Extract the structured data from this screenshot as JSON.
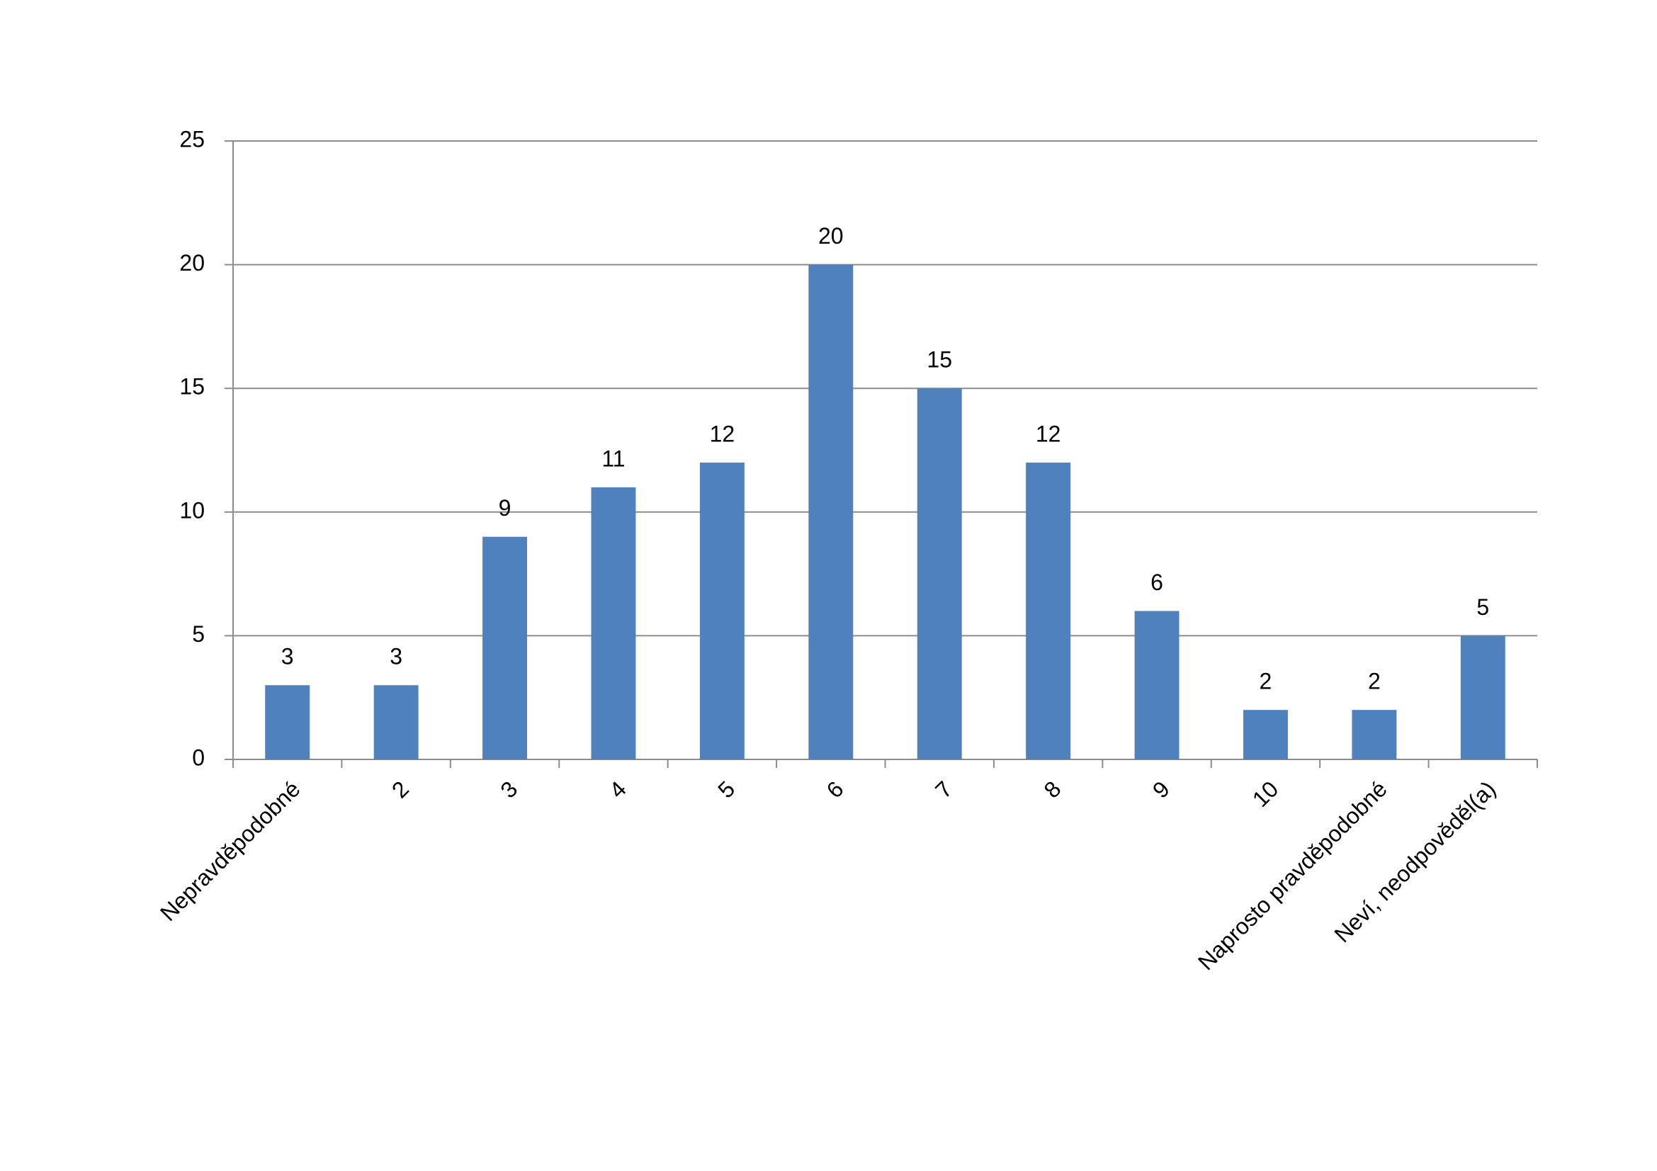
{
  "chart_data": {
    "type": "bar",
    "categories": [
      "Nepravděpodobné",
      "2",
      "3",
      "4",
      "5",
      "6",
      "7",
      "8",
      "9",
      "10",
      "Naprosto pravděpodobné",
      "Neví, neodpověděl(a)"
    ],
    "values": [
      3,
      3,
      9,
      11,
      12,
      20,
      15,
      12,
      6,
      2,
      2,
      5
    ],
    "color": "#4f81bd",
    "ylim": [
      0,
      25
    ],
    "yticks": [
      0,
      5,
      10,
      15,
      20,
      25
    ],
    "grid": true
  }
}
